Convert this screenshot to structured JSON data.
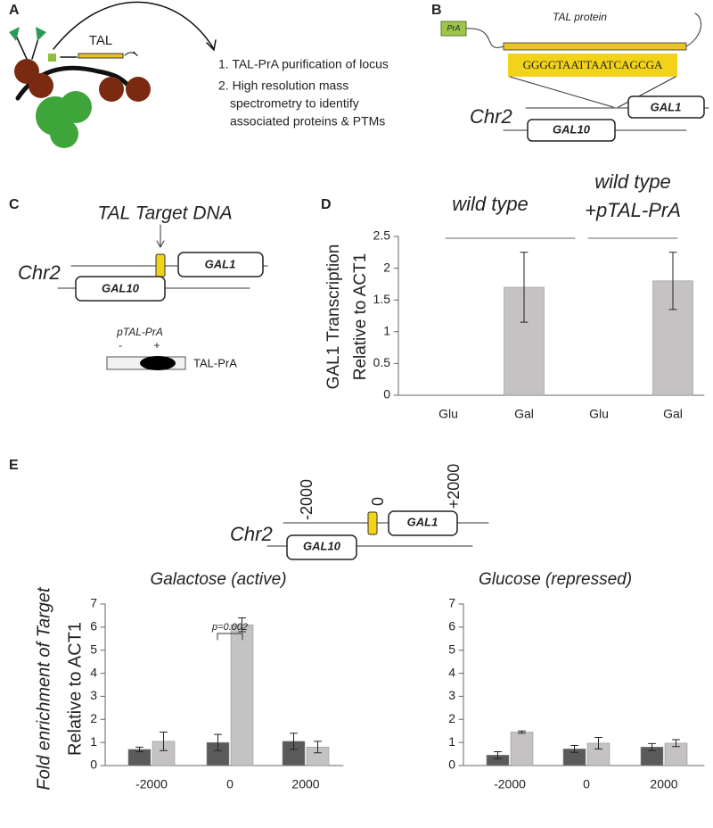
{
  "panel_labels": [
    "A",
    "B",
    "C",
    "D",
    "E"
  ],
  "panel_a": {
    "tal_label": "TAL",
    "steps": [
      "1. TAL-PrA purification of locus",
      "2. High resolution mass",
      "spectrometry to identify",
      "associated proteins & PTMs"
    ]
  },
  "panel_b": {
    "pra": "PrA",
    "protein": "TAL protein",
    "sequence": "GGGGTAATTAATCAGCGA",
    "chromosome": "Chr2",
    "gene_top": "GAL1",
    "gene_bottom": "GAL10"
  },
  "panel_c": {
    "target": "TAL Target DNA",
    "chromosome": "Chr2",
    "gene_top": "GAL1",
    "gene_bottom": "GAL10",
    "blot_title": "pTAL-PrA",
    "lanes": [
      "-",
      "+"
    ],
    "blot_label": "TAL-PrA"
  },
  "panel_e": {
    "positions": [
      "-2000",
      "0",
      "+2000"
    ],
    "chromosome": "Chr2",
    "gene_top": "GAL1",
    "gene_bottom": "GAL10"
  },
  "chart_data": [
    {
      "type": "bar",
      "ylabel": [
        "GAL1 Transcription",
        "Relative to ACT1"
      ],
      "groups": [
        [
          "wild type"
        ],
        [
          "wild type",
          "+pTAL-PrA"
        ]
      ],
      "categories": [
        "Glu",
        "Gal",
        "Glu",
        "Gal"
      ],
      "series": [
        {
          "color": "#c4c2c2",
          "values": [
            0,
            1.7,
            0,
            1.8
          ],
          "errors": [
            0,
            0.55,
            0,
            0.45
          ]
        }
      ],
      "ylim": [
        0,
        2.5
      ],
      "yticks": [
        0,
        0.5,
        1,
        1.5,
        2,
        2.5
      ]
    },
    {
      "type": "bar",
      "title": "Galactose (active)",
      "ylabel": [
        "Fold enrichment of Target",
        "Relative to ACT1"
      ],
      "annotation": "p=0.002",
      "categories": [
        "-2000",
        "0",
        "2000"
      ],
      "series": [
        {
          "color": "#5a5a5a",
          "values": [
            0.7,
            1.0,
            1.05
          ],
          "errors": [
            0.1,
            0.35,
            0.35
          ]
        },
        {
          "color": "#c4c2c2",
          "values": [
            1.05,
            6.1,
            0.8
          ],
          "errors": [
            0.4,
            0.3,
            0.25
          ]
        }
      ],
      "ylim": [
        0,
        7
      ],
      "yticks": [
        0,
        1,
        2,
        3,
        4,
        5,
        6,
        7
      ]
    },
    {
      "type": "bar",
      "title": "Glucose (repressed)",
      "categories": [
        "-2000",
        "0",
        "2000"
      ],
      "series": [
        {
          "color": "#5a5a5a",
          "values": [
            0.45,
            0.72,
            0.8
          ],
          "errors": [
            0.15,
            0.15,
            0.15
          ]
        },
        {
          "color": "#c4c2c2",
          "values": [
            1.45,
            0.97,
            0.97
          ],
          "errors": [
            0.05,
            0.25,
            0.15
          ]
        }
      ],
      "ylim": [
        0,
        7
      ],
      "yticks": [
        0,
        1,
        2,
        3,
        4,
        5,
        6,
        7
      ]
    }
  ]
}
